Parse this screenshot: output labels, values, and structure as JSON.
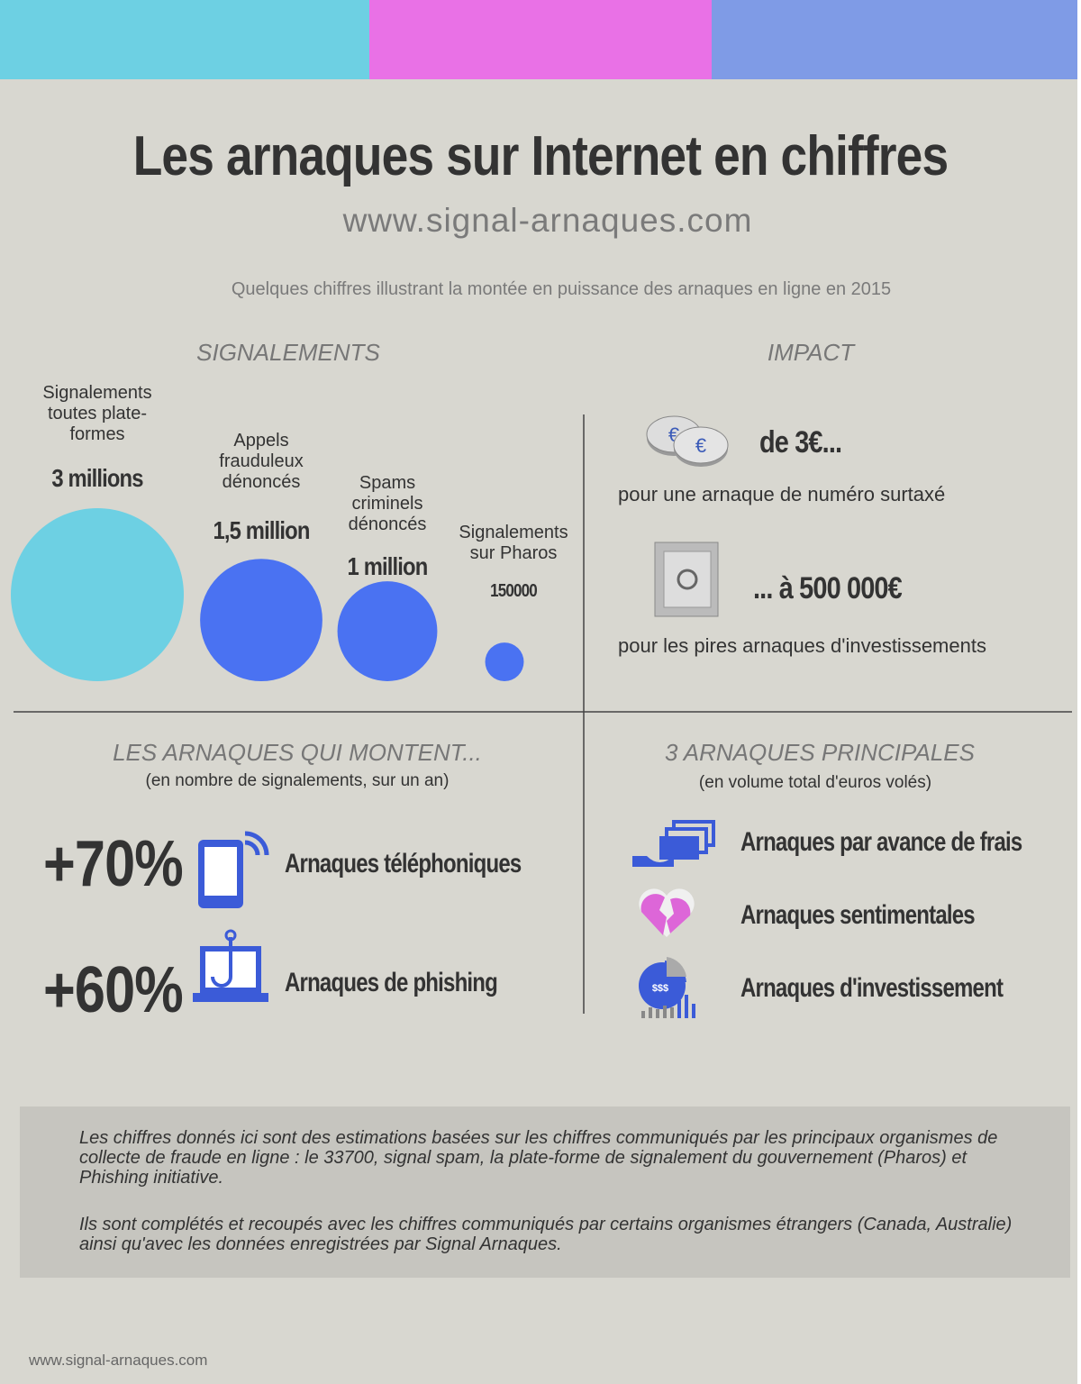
{
  "header": {
    "title": "Les arnaques sur Internet en chiffres",
    "url": "www.signal-arnaques.com",
    "intro": "Quelques chiffres illustrant la montée en puissance des arnaques en ligne en 2015"
  },
  "signalements": {
    "heading": "SIGNALEMENTS",
    "items": [
      {
        "label": "Signalements toutes plate-formes",
        "value": 3000000,
        "value_label": "3 millions"
      },
      {
        "label": "Appels frauduleux dénoncés",
        "value": 1500000,
        "value_label": "1,5 million"
      },
      {
        "label": "Spams criminels dénoncés",
        "value": 1000000,
        "value_label": "1 million"
      },
      {
        "label": "Signalements sur Pharos",
        "value": 150000,
        "value_label": "150000"
      }
    ]
  },
  "impact": {
    "heading": "IMPACT",
    "items": [
      {
        "amount": "de 3€...",
        "text": "pour une arnaque de numéro surtaxé"
      },
      {
        "amount": "... à 500 000€",
        "text": "pour les pires arnaques d'investissements"
      }
    ]
  },
  "rising": {
    "heading": "LES ARNAQUES QUI MONTENT...",
    "subheading": "(en nombre de signalements, sur un an)",
    "items": [
      {
        "change": "+70%",
        "label": "Arnaques téléphoniques"
      },
      {
        "change": "+60%",
        "label": "Arnaques de phishing"
      }
    ]
  },
  "top": {
    "heading": "3 ARNAQUES PRINCIPALES",
    "subheading": "(en volume total d'euros volés)",
    "items": [
      "Arnaques par avance de frais",
      "Arnaques sentimentales",
      "Arnaques d'investissement"
    ]
  },
  "note": {
    "paragraphs": [
      "Les chiffres donnés ici sont des estimations basées sur les chiffres communiqués par les principaux organismes de collecte de fraude en ligne : le 33700, signal spam, la plate-forme de signalement du gouvernement (Pharos) et Phishing initiative.",
      "Ils sont complétés et recoupés avec les chiffres communiqués par certains organismes étrangers (Canada, Australie) ainsi qu'avec les données enregistrées par Signal Arnaques."
    ]
  },
  "footer": "www.signal-arnaques.com"
}
